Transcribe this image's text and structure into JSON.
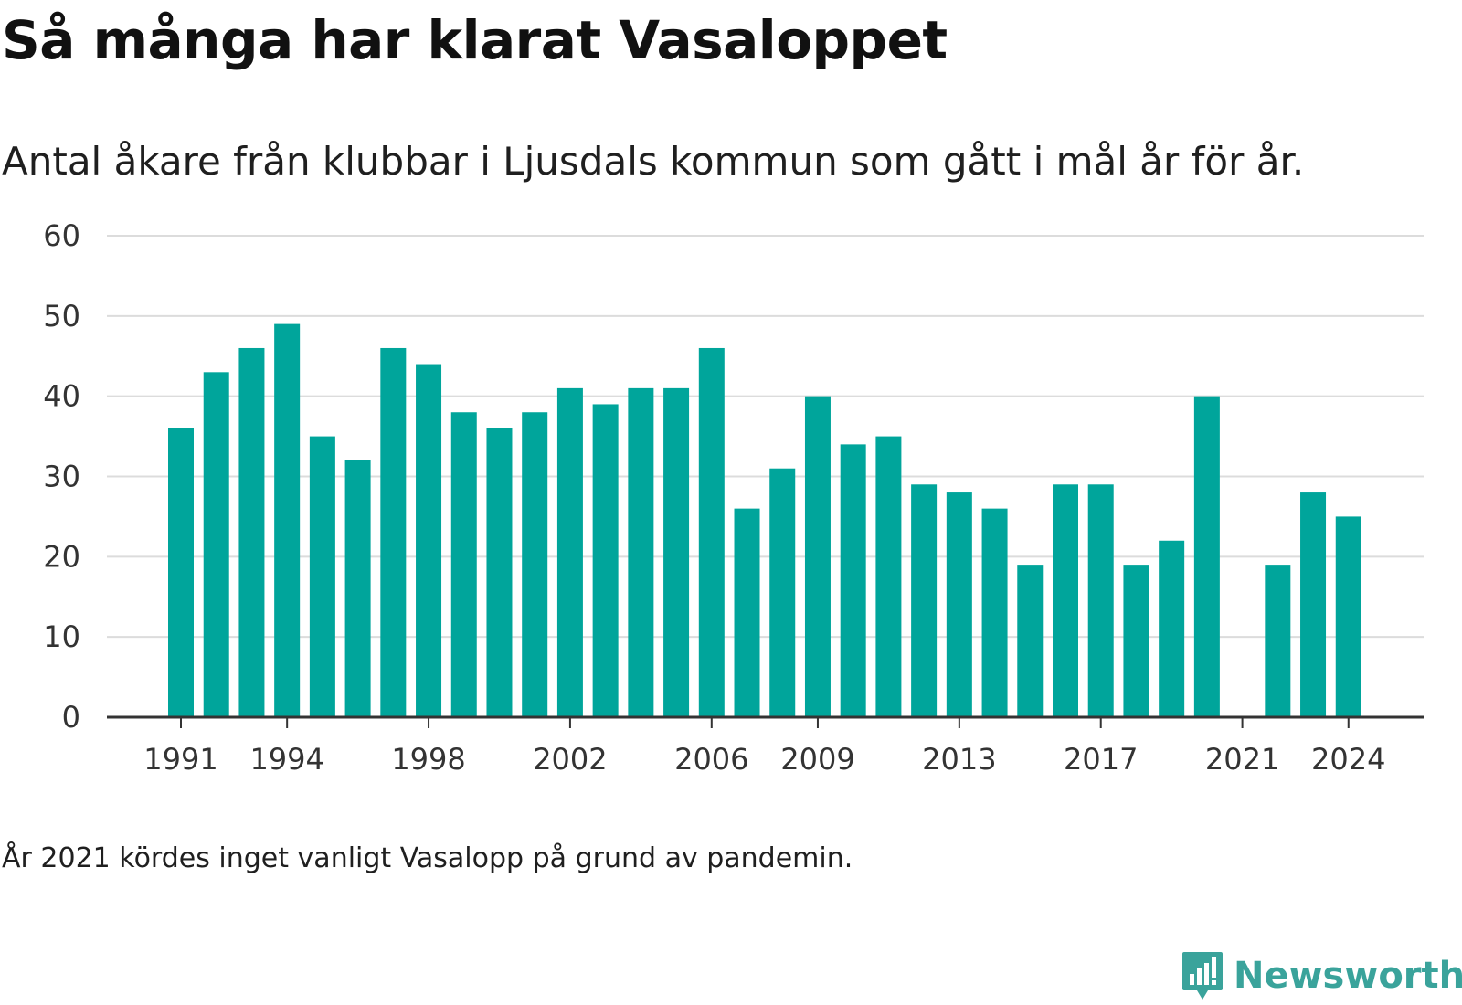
{
  "chart_data": {
    "type": "bar",
    "title": "Så många har klarat Vasaloppet",
    "subtitle": "Antal åkare från klubbar i Ljusdals kommun som gått i mål år för år.",
    "categories": [
      "1991",
      "1992",
      "1993",
      "1994",
      "1995",
      "1996",
      "1997",
      "1998",
      "1999",
      "2000",
      "2001",
      "2002",
      "2003",
      "2004",
      "2005",
      "2006",
      "2007",
      "2008",
      "2009",
      "2010",
      "2011",
      "2012",
      "2013",
      "2014",
      "2015",
      "2016",
      "2017",
      "2018",
      "2019",
      "2020",
      "2021",
      "2022",
      "2023",
      "2024"
    ],
    "values": [
      36,
      43,
      46,
      49,
      35,
      32,
      46,
      44,
      38,
      36,
      38,
      41,
      39,
      41,
      41,
      46,
      26,
      31,
      40,
      34,
      35,
      29,
      28,
      26,
      19,
      29,
      29,
      19,
      22,
      40,
      null,
      19,
      28,
      25
    ],
    "x_tick_labels": [
      "1991",
      "1994",
      "1998",
      "2002",
      "2006",
      "2009",
      "2013",
      "2017",
      "2021",
      "2024"
    ],
    "y_tick_labels": [
      "0",
      "10",
      "20",
      "30",
      "40",
      "50",
      "60"
    ],
    "ylim": [
      0,
      60
    ],
    "xlabel": "",
    "ylabel": "",
    "grid": true,
    "bar_color": "#00a59b"
  },
  "note": "År 2021 kördes inget vanligt Vasalopp på grund av pandemin.",
  "brand": {
    "name": "Newsworthy",
    "icon": "newsworthy-logo-icon",
    "color": "#3aa39b"
  }
}
